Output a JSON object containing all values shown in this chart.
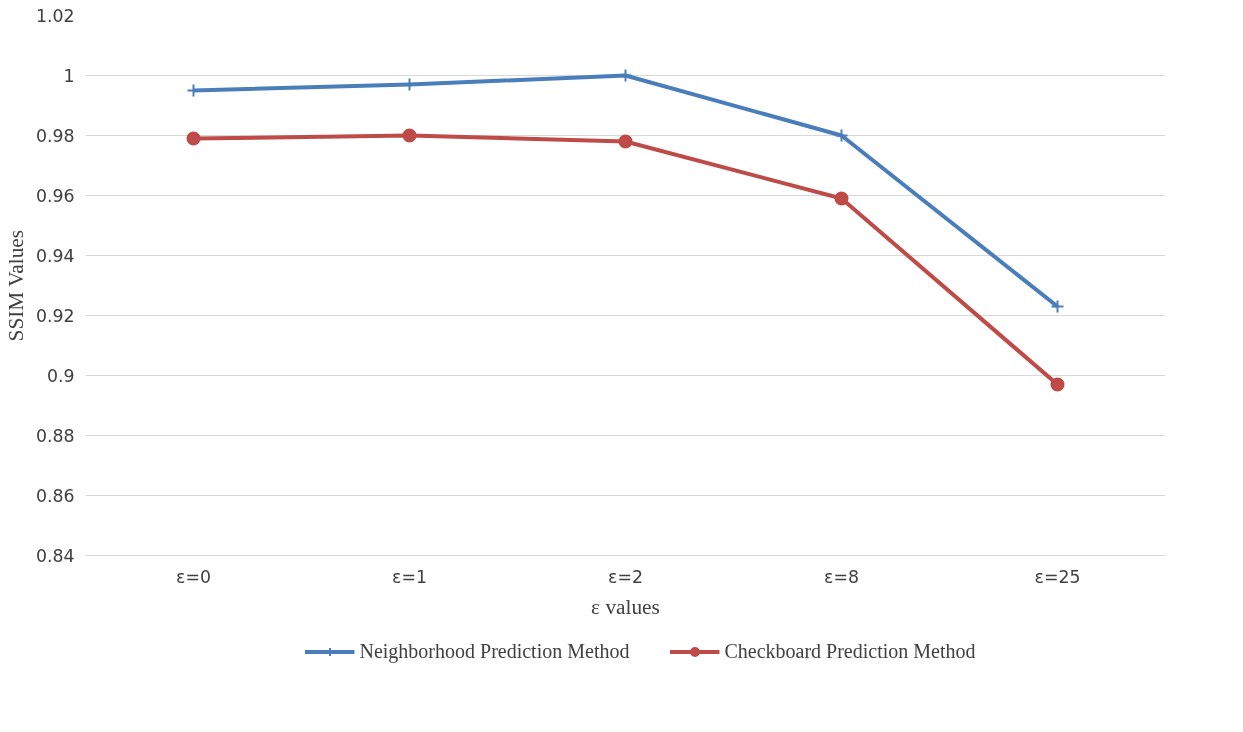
{
  "chart_data": {
    "type": "line",
    "xlabel": "ε values",
    "ylabel": "SSIM Values",
    "categories": [
      "ε=0",
      "ε=1",
      "ε=2",
      "ε=8",
      "ε=25"
    ],
    "series": [
      {
        "name": "Neighborhood Prediction Method",
        "color": "#4a7ebb",
        "marker": "cross",
        "values": [
          0.995,
          0.997,
          1.0,
          0.98,
          0.923
        ]
      },
      {
        "name": "Checkboard Prediction Method",
        "color": "#be4b48",
        "marker": "circle",
        "values": [
          0.979,
          0.98,
          0.978,
          0.959,
          0.897
        ]
      }
    ],
    "ylim": [
      0.84,
      1.02
    ],
    "yticks": [
      {
        "value": 0.84,
        "label": "0.84"
      },
      {
        "value": 0.86,
        "label": "0.86"
      },
      {
        "value": 0.88,
        "label": "0.88"
      },
      {
        "value": 0.9,
        "label": "0.9"
      },
      {
        "value": 0.92,
        "label": "0.92"
      },
      {
        "value": 0.94,
        "label": "0.94"
      },
      {
        "value": 0.96,
        "label": "0.96"
      },
      {
        "value": 0.98,
        "label": "0.98"
      },
      {
        "value": 1.0,
        "label": "1"
      },
      {
        "value": 1.02,
        "label": "1.02"
      }
    ],
    "grid": "y",
    "legend": "bottom",
    "line_style": "solid"
  }
}
